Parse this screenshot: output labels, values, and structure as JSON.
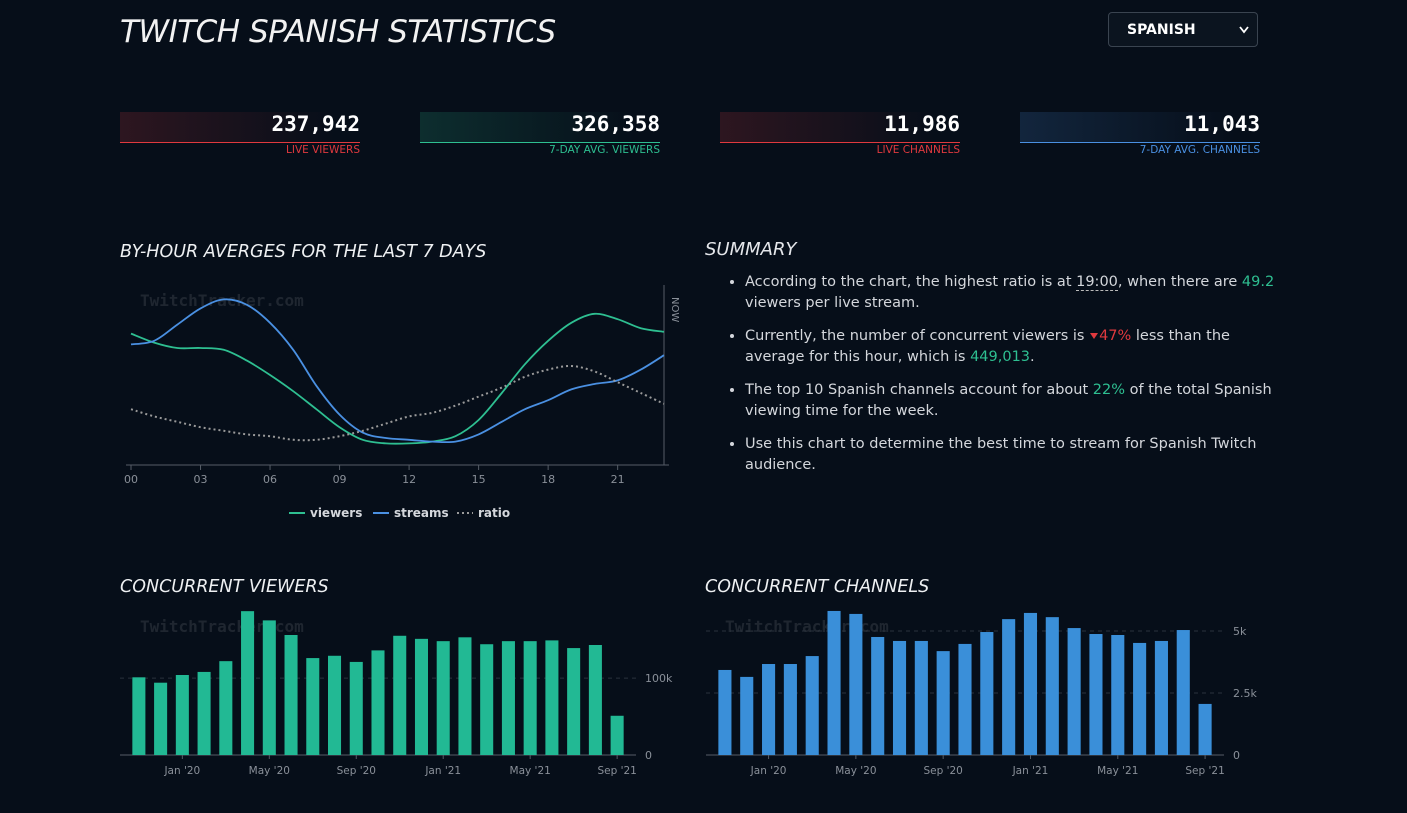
{
  "header": {
    "title": "TWITCH SPANISH STATISTICS",
    "language_select": "SPANISH"
  },
  "stats": [
    {
      "value": "237,942",
      "label": "LIVE VIEWERS",
      "color": "#e0393e"
    },
    {
      "value": "326,358",
      "label": "7-DAY AVG. VIEWERS",
      "color": "#2ebf91"
    },
    {
      "value": "11,986",
      "label": "LIVE CHANNELS",
      "color": "#e0393e"
    },
    {
      "value": "11,043",
      "label": "7-DAY AVG. CHANNELS",
      "color": "#4a90e2"
    }
  ],
  "summary": {
    "title": "SUMMARY",
    "items": [
      [
        "According to the chart, the highest ratio is at ",
        "19:00",
        ", when there are ",
        "49.2",
        " viewers per live stream."
      ],
      [
        "Currently, the number of concurrent viewers is ",
        "47%",
        " less than the average for this hour, which is ",
        "449,013",
        "."
      ],
      [
        "The top 10 Spanish channels account for about ",
        "22%",
        " of the total Spanish viewing time for the week."
      ],
      [
        "Use this chart to determine the best time to stream for Spanish Twitch audience."
      ]
    ]
  },
  "chart_data": [
    {
      "type": "line",
      "title": "BY-HOUR AVERGES FOR THE LAST 7 DAYS",
      "watermark": "TwitchTracker.com",
      "annotation": "NOW",
      "x": [
        0,
        1,
        2,
        3,
        4,
        5,
        6,
        7,
        8,
        9,
        10,
        11,
        12,
        13,
        14,
        15,
        16,
        17,
        18,
        19,
        20,
        21,
        22,
        23
      ],
      "xlim": [
        0,
        23
      ],
      "xticks": [
        {
          "value": 0,
          "label": "00"
        },
        {
          "value": 3,
          "label": "03"
        },
        {
          "value": 6,
          "label": "06"
        },
        {
          "value": 9,
          "label": "09"
        },
        12,
        15,
        18,
        21
      ],
      "ylim": [
        0,
        100
      ],
      "series": [
        {
          "name": "viewers",
          "color": "#2ebf91",
          "dashed": false,
          "values": [
            73,
            68,
            65,
            65,
            64,
            58,
            50,
            41,
            31,
            21,
            14,
            12,
            12,
            13,
            16,
            25,
            40,
            56,
            69,
            79,
            84,
            81,
            76,
            74
          ]
        },
        {
          "name": "streams",
          "color": "#4a90e2",
          "dashed": false,
          "values": [
            67,
            69,
            78,
            87,
            92,
            89,
            79,
            64,
            44,
            28,
            18,
            15,
            14,
            13,
            13,
            17,
            24,
            31,
            36,
            42,
            45,
            47,
            53,
            61
          ]
        },
        {
          "name": "ratio",
          "color": "#9a9a9a",
          "dashed": true,
          "values": [
            31,
            27,
            24,
            21,
            19,
            17,
            16,
            14,
            14,
            16,
            19,
            23,
            27,
            29,
            33,
            38,
            43,
            49,
            53,
            55,
            52,
            46,
            40,
            34
          ]
        }
      ]
    },
    {
      "type": "bar",
      "title": "CONCURRENT VIEWERS",
      "watermark": "TwitchTracker.com",
      "color": "#22b994",
      "categories": [
        null,
        null,
        "Jan '20",
        null,
        null,
        null,
        "May '20",
        null,
        null,
        null,
        "Sep '20",
        null,
        null,
        null,
        "Jan '21",
        null,
        null,
        null,
        "May '21",
        null,
        null,
        null,
        "Sep '21"
      ],
      "values": [
        101000,
        94000,
        104000,
        108000,
        122000,
        187000,
        175000,
        156000,
        126000,
        129000,
        121000,
        136000,
        155000,
        151000,
        148000,
        153000,
        144000,
        148000,
        148000,
        149000,
        139000,
        143000,
        51000
      ],
      "ylim": [
        0,
        195000
      ],
      "yticks": [
        0,
        {
          "value": 100000,
          "label": "100k"
        }
      ],
      "grid": true
    },
    {
      "type": "bar",
      "title": "CONCURRENT CHANNELS",
      "watermark": "TwitchTracker.com",
      "color": "#3a8fd9",
      "categories": [
        null,
        null,
        "Jan '20",
        null,
        null,
        null,
        "May '20",
        null,
        null,
        null,
        "Sep '20",
        null,
        null,
        null,
        "Jan '21",
        null,
        null,
        null,
        "May '21",
        null,
        null,
        null,
        "Sep '21"
      ],
      "values": [
        3430,
        3150,
        3670,
        3670,
        3990,
        5810,
        5690,
        4760,
        4600,
        4600,
        4190,
        4480,
        4960,
        5480,
        5730,
        5560,
        5120,
        4880,
        4840,
        4520,
        4600,
        5040,
        2060
      ],
      "ylim": [
        0,
        6050
      ],
      "yticks": [
        0,
        {
          "value": 2500,
          "label": "2.5k"
        },
        {
          "value": 5000,
          "label": "5k"
        }
      ],
      "grid": true
    }
  ]
}
